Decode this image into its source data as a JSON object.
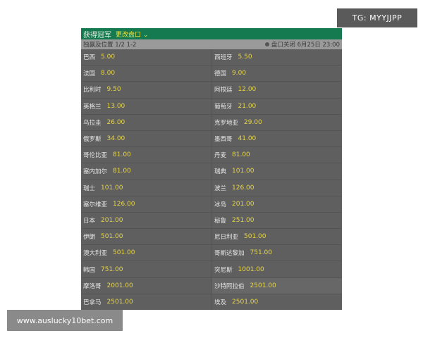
{
  "header": {
    "title": "获得冠军",
    "change_market": "更改盘口",
    "chevron_icon": "chevron-down-icon"
  },
  "subheader": {
    "market": "独赢及位置 1/2 1-2",
    "clock_icon": "clock-icon",
    "closing": "盘口关闭 6月25日 23:00"
  },
  "teams": [
    {
      "name": "巴西",
      "odds": "5.00"
    },
    {
      "name": "西班牙",
      "odds": "5.50"
    },
    {
      "name": "法国",
      "odds": "8.00"
    },
    {
      "name": "德国",
      "odds": "9.00"
    },
    {
      "name": "比利时",
      "odds": "9.50"
    },
    {
      "name": "阿根廷",
      "odds": "12.00"
    },
    {
      "name": "英格兰",
      "odds": "13.00"
    },
    {
      "name": "葡萄牙",
      "odds": "21.00"
    },
    {
      "name": "乌拉圭",
      "odds": "26.00"
    },
    {
      "name": "克罗地亚",
      "odds": "29.00"
    },
    {
      "name": "俄罗斯",
      "odds": "34.00"
    },
    {
      "name": "墨西哥",
      "odds": "41.00"
    },
    {
      "name": "哥伦比亚",
      "odds": "81.00"
    },
    {
      "name": "丹麦",
      "odds": "81.00"
    },
    {
      "name": "塞内加尔",
      "odds": "81.00"
    },
    {
      "name": "瑞典",
      "odds": "101.00"
    },
    {
      "name": "瑞士",
      "odds": "101.00"
    },
    {
      "name": "波兰",
      "odds": "126.00"
    },
    {
      "name": "塞尔维亚",
      "odds": "126.00"
    },
    {
      "name": "冰岛",
      "odds": "201.00"
    },
    {
      "name": "日本",
      "odds": "201.00"
    },
    {
      "name": "秘鲁",
      "odds": "251.00"
    },
    {
      "name": "伊朗",
      "odds": "501.00"
    },
    {
      "name": "尼日利亚",
      "odds": "501.00"
    },
    {
      "name": "澳大利亚",
      "odds": "501.00"
    },
    {
      "name": "哥斯达黎加",
      "odds": "751.00"
    },
    {
      "name": "韩国",
      "odds": "751.00"
    },
    {
      "name": "突尼斯",
      "odds": "1001.00"
    },
    {
      "name": "摩洛哥",
      "odds": "2001.00"
    },
    {
      "name": "沙特阿拉伯",
      "odds": "2501.00"
    },
    {
      "name": "巴拿马",
      "odds": "2501.00"
    },
    {
      "name": "埃及",
      "odds": "2501.00"
    }
  ],
  "watermarks": {
    "tg": "TG: MYYJJPP",
    "site": "www.auslucky10bet.com"
  },
  "colors": {
    "header_green": "#157a4f",
    "odds_yellow": "#e7d64a",
    "panel_grey": "#5f5f5f"
  }
}
